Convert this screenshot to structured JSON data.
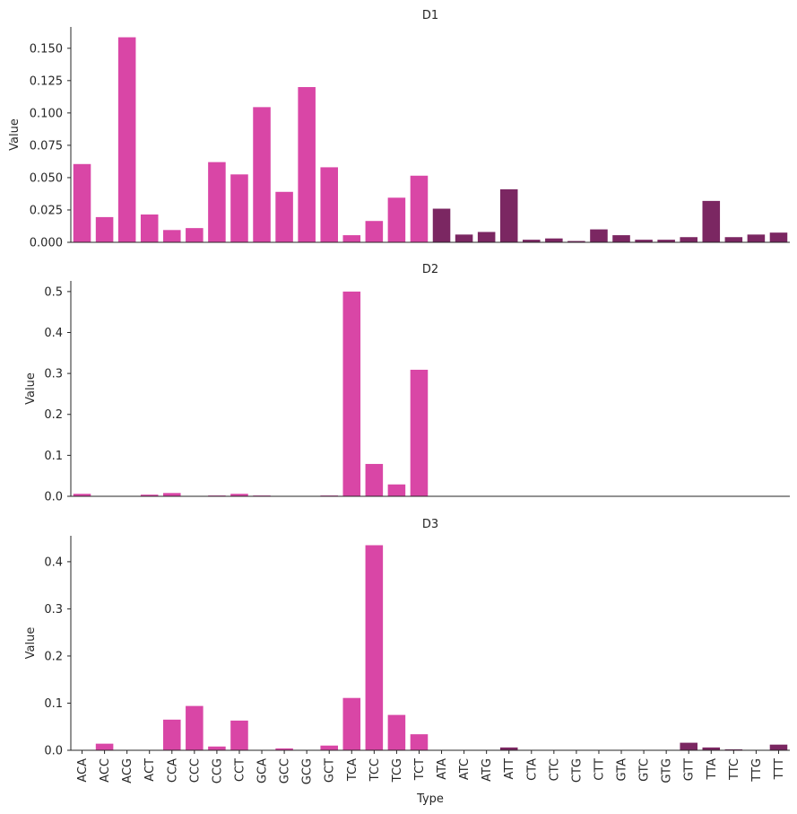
{
  "chart_data": {
    "type": "bar",
    "xlabel": "Type",
    "colors": {
      "pink": "#d946a6",
      "purple": "#7b2762"
    },
    "categories": [
      "ACA",
      "ACC",
      "ACG",
      "ACT",
      "CCA",
      "CCC",
      "CCG",
      "CCT",
      "GCA",
      "GCC",
      "GCG",
      "GCT",
      "TCA",
      "TCC",
      "TCG",
      "TCT",
      "ATA",
      "ATC",
      "ATG",
      "ATT",
      "CTA",
      "CTC",
      "CTG",
      "CTT",
      "GTA",
      "GTC",
      "GTG",
      "GTT",
      "TTA",
      "TTC",
      "TTG",
      "TTT"
    ],
    "bar_colors": [
      "pink",
      "pink",
      "pink",
      "pink",
      "pink",
      "pink",
      "pink",
      "pink",
      "pink",
      "pink",
      "pink",
      "pink",
      "pink",
      "pink",
      "pink",
      "pink",
      "purple",
      "purple",
      "purple",
      "purple",
      "purple",
      "purple",
      "purple",
      "purple",
      "purple",
      "purple",
      "purple",
      "purple",
      "purple",
      "purple",
      "purple",
      "purple"
    ],
    "panels": [
      {
        "title": "D1",
        "ylabel": "Value",
        "ylim": [
          0,
          0.1665
        ],
        "yticks": [
          0.0,
          0.025,
          0.05,
          0.075,
          0.1,
          0.125,
          0.15
        ],
        "ytick_labels": [
          "0.000",
          "0.025",
          "0.050",
          "0.075",
          "0.100",
          "0.125",
          "0.150"
        ],
        "values": [
          0.0605,
          0.0195,
          0.1585,
          0.0215,
          0.0095,
          0.011,
          0.062,
          0.0525,
          0.1045,
          0.039,
          0.12,
          0.058,
          0.0055,
          0.0165,
          0.0345,
          0.0515,
          0.026,
          0.006,
          0.008,
          0.041,
          0.002,
          0.003,
          0.001,
          0.01,
          0.0055,
          0.002,
          0.002,
          0.004,
          0.032,
          0.004,
          0.006,
          0.0075
        ]
      },
      {
        "title": "D2",
        "ylabel": "Value",
        "ylim": [
          0,
          0.526
        ],
        "yticks": [
          0.0,
          0.1,
          0.2,
          0.3,
          0.4,
          0.5
        ],
        "ytick_labels": [
          "0.0",
          "0.1",
          "0.2",
          "0.3",
          "0.4",
          "0.5"
        ],
        "values": [
          0.006,
          0,
          0,
          0.004,
          0.008,
          0,
          0.002,
          0.006,
          0.002,
          0,
          0,
          0.002,
          0.5,
          0.079,
          0.029,
          0.309,
          0,
          0,
          0,
          0,
          0,
          0,
          0,
          0,
          0,
          0,
          0,
          0,
          0,
          0,
          0,
          0
        ]
      },
      {
        "title": "D3",
        "ylabel": "Value",
        "ylim": [
          0,
          0.455
        ],
        "yticks": [
          0.0,
          0.1,
          0.2,
          0.3,
          0.4
        ],
        "ytick_labels": [
          "0.0",
          "0.1",
          "0.2",
          "0.3",
          "0.4"
        ],
        "values": [
          0,
          0.014,
          0,
          0,
          0.065,
          0.094,
          0.008,
          0.063,
          0,
          0.004,
          0,
          0.01,
          0.111,
          0.435,
          0.075,
          0.034,
          0,
          0,
          0,
          0.006,
          0,
          0,
          0,
          0,
          0,
          0,
          0,
          0.016,
          0.006,
          0.002,
          0,
          0.012
        ]
      }
    ]
  }
}
